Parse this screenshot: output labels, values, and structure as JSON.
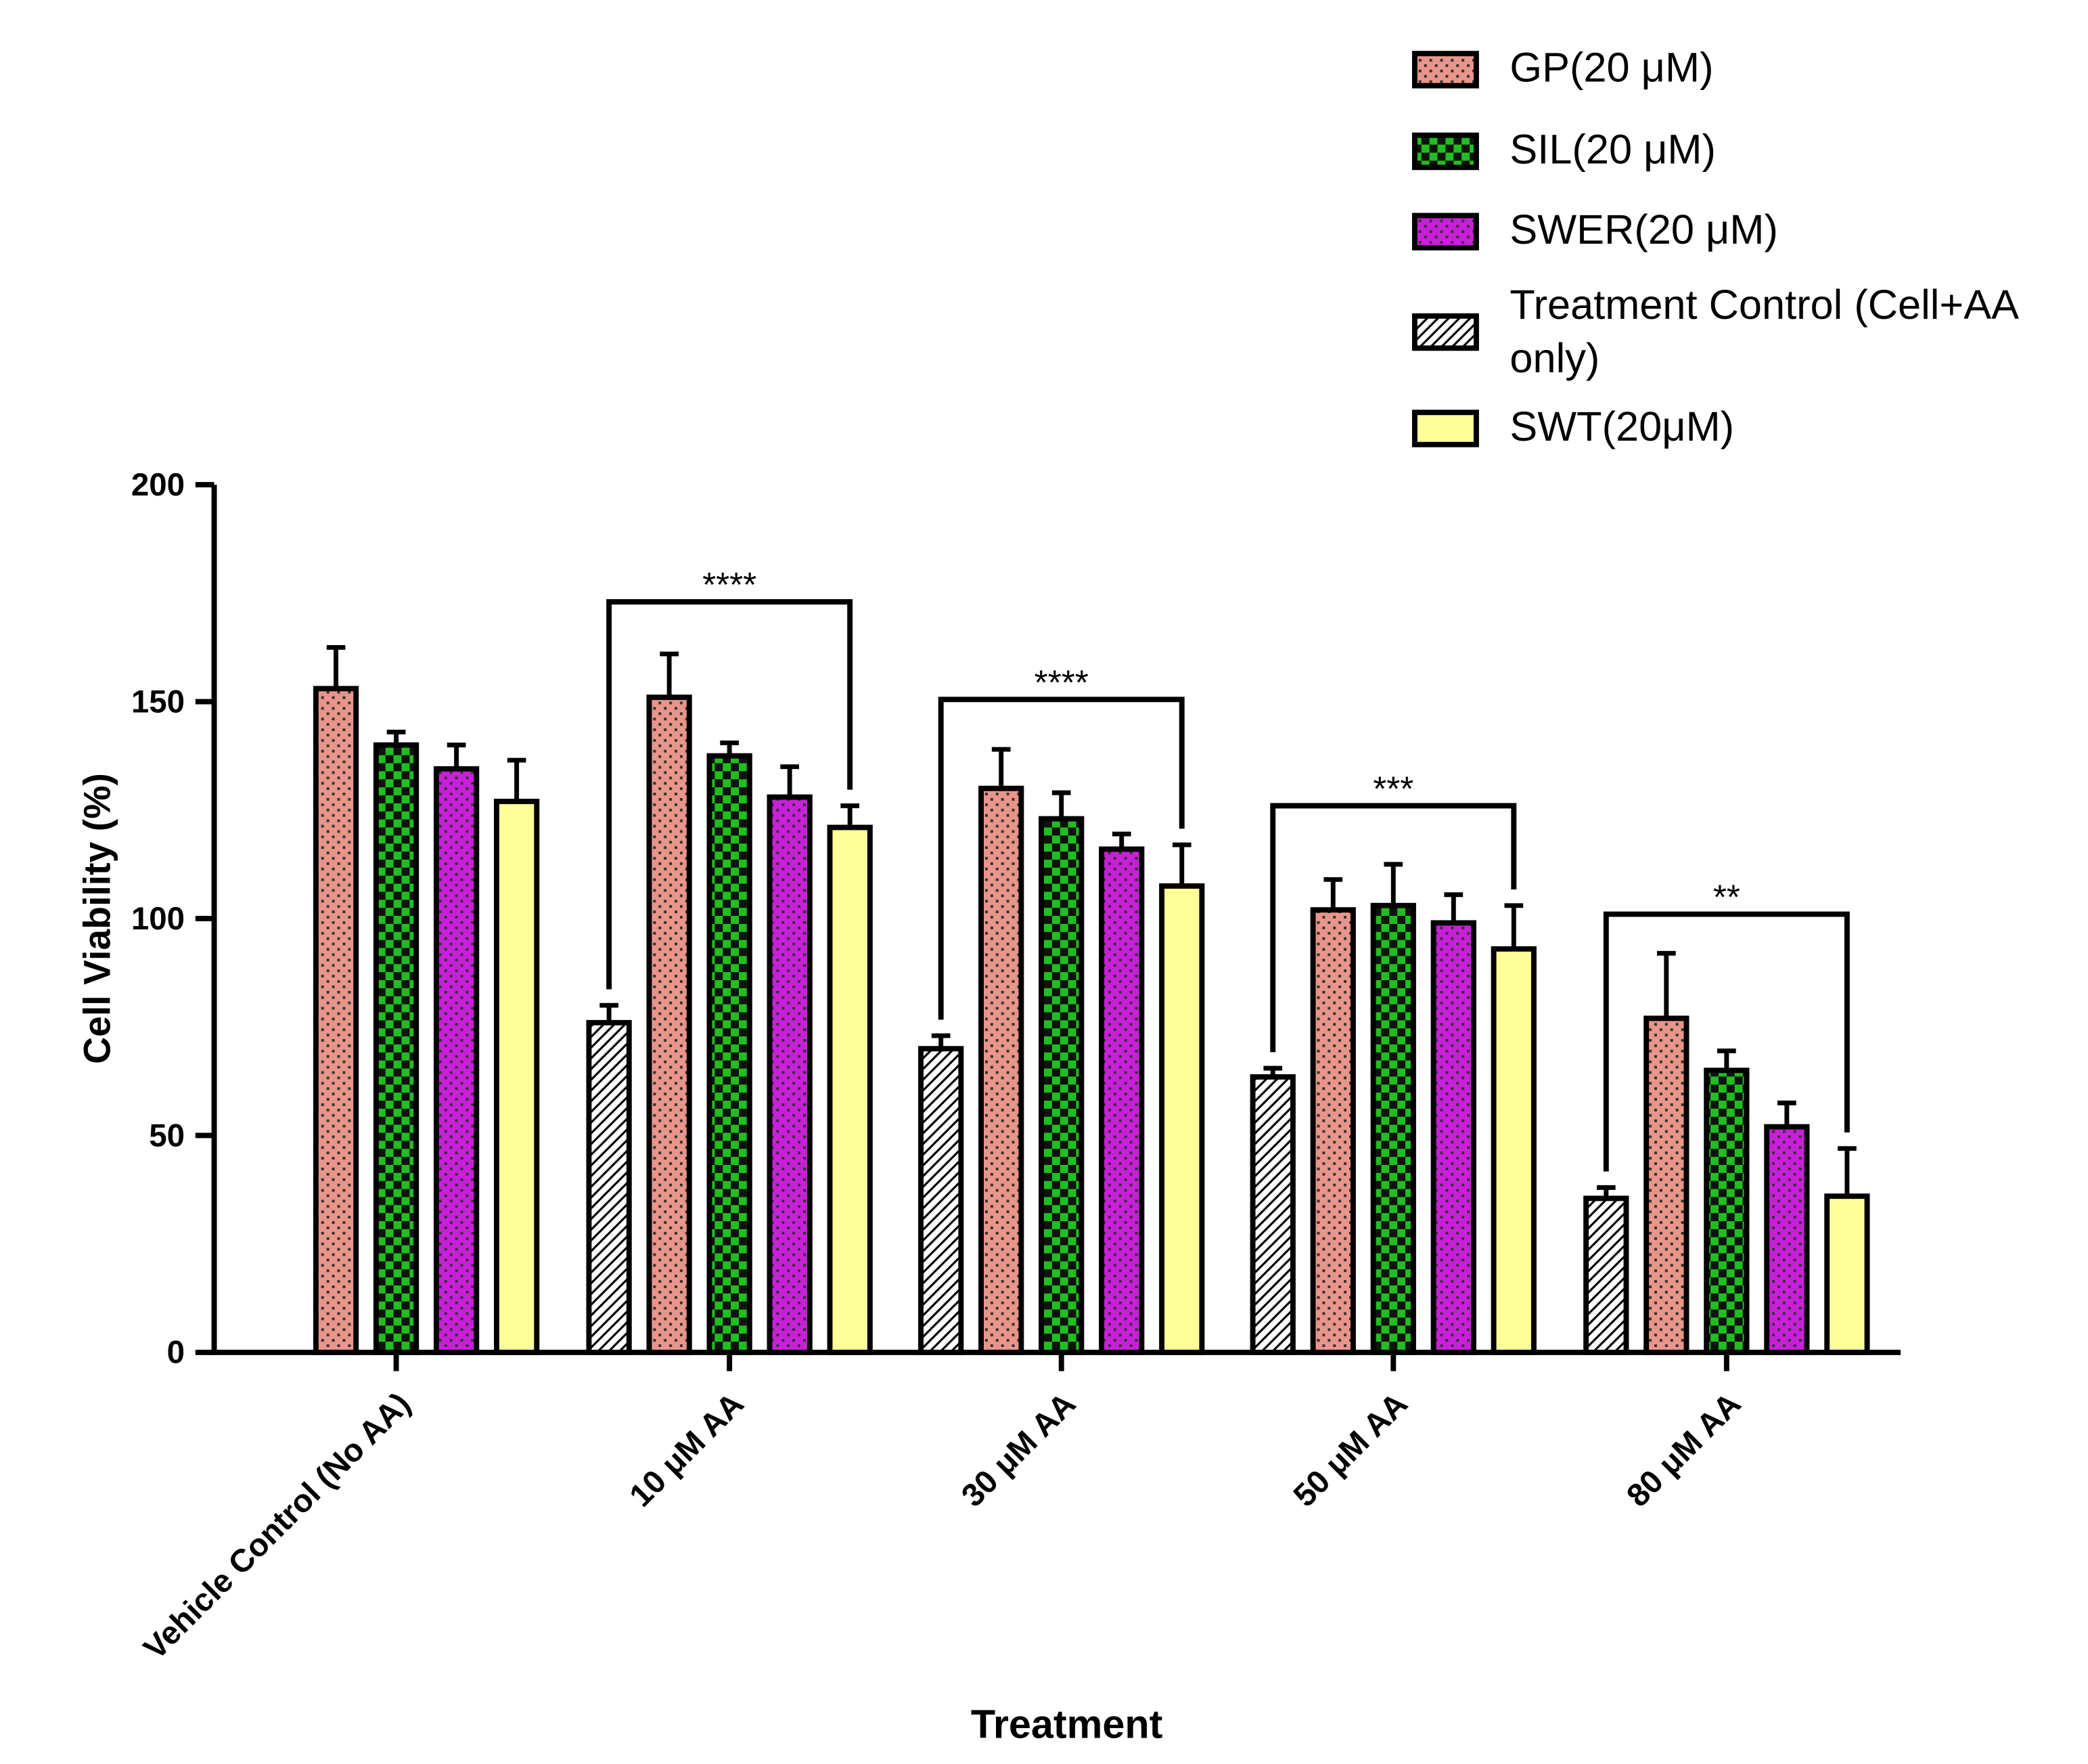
{
  "chart_data": {
    "type": "bar",
    "x_label": "Treatment",
    "y_label": "Cell Viability (%)",
    "categories": [
      "Vehicle Control (No AA)",
      "10 μM AA",
      "30 μM AA",
      "50 μM AA",
      "80 μM AA"
    ],
    "series": [
      {
        "name": "GP(20 μM)",
        "color": "#e8958a",
        "values": [
          153,
          151,
          130,
          102,
          77
        ],
        "errors": [
          9.5,
          10,
          9,
          7,
          15
        ]
      },
      {
        "name": "SIL(20 μM)",
        "color": "#1fbf1f",
        "values": [
          140,
          137.5,
          123,
          103,
          65
        ],
        "errors": [
          3,
          3,
          6,
          9.5,
          4.5
        ]
      },
      {
        "name": "SWER(20 μM)",
        "color": "#c820d8",
        "values": [
          134.5,
          128,
          116,
          99,
          52
        ],
        "errors": [
          5.5,
          7,
          3.5,
          6.5,
          5.5
        ]
      },
      {
        "name": "Treatment Control (Cell+AA only)",
        "color": "#ffffff",
        "values": [
          null,
          76,
          70,
          63.5,
          35.5
        ],
        "errors": [
          null,
          4,
          3,
          2,
          2.5
        ]
      },
      {
        "name": "SWT(20μM)",
        "color": "#ffff99",
        "values": [
          127,
          121,
          107.5,
          93,
          36
        ],
        "errors": [
          9.5,
          5,
          9.5,
          10,
          11
        ]
      }
    ],
    "annotations": [
      {
        "label": "****",
        "category": 1,
        "y": 173
      },
      {
        "label": "****",
        "category": 2,
        "y": 150.5
      },
      {
        "label": "***",
        "category": 3,
        "y": 126
      },
      {
        "label": "**",
        "category": 4,
        "y": 101
      }
    ],
    "ylim": [
      0,
      200
    ],
    "yticks": [
      0,
      50,
      100,
      150,
      200
    ]
  }
}
